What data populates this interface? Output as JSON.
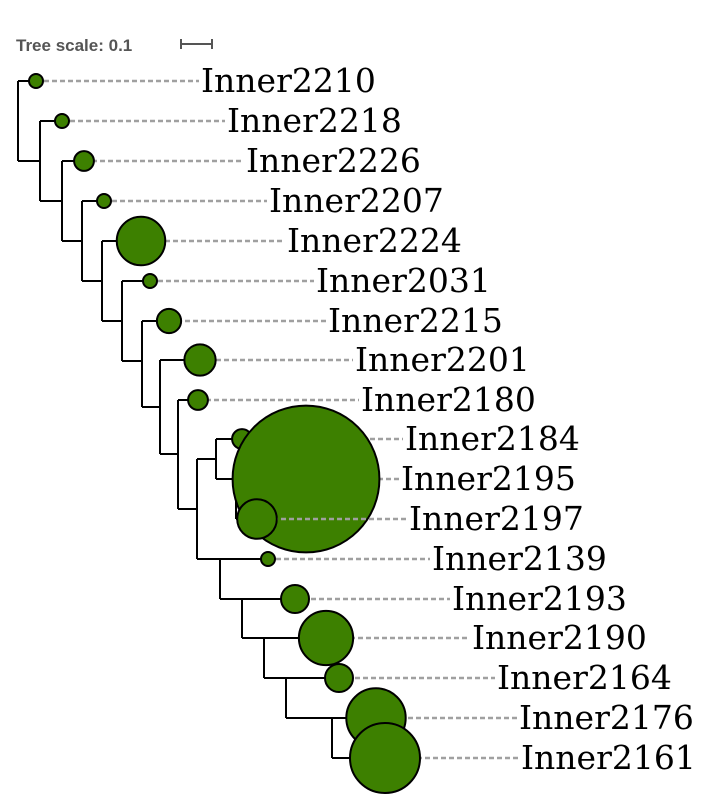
{
  "tree_scale": {
    "label": "Tree scale: 0.1",
    "color": "#555555"
  },
  "colors": {
    "node_fill": "#3d8000",
    "guide": "#a0a0a0",
    "branch": "#000000"
  },
  "leaves": [
    {
      "label": "Inner2210",
      "size": 1
    },
    {
      "label": "Inner2218",
      "size": 1
    },
    {
      "label": "Inner2226",
      "size": 2
    },
    {
      "label": "Inner2207",
      "size": 1
    },
    {
      "label": "Inner2224",
      "size": 12
    },
    {
      "label": "Inner2031",
      "size": 1
    },
    {
      "label": "Inner2215",
      "size": 3
    },
    {
      "label": "Inner2201",
      "size": 5
    },
    {
      "label": "Inner2180",
      "size": 2
    },
    {
      "label": "Inner2184",
      "size": 2
    },
    {
      "label": "Inner2195",
      "size": 110
    },
    {
      "label": "Inner2197",
      "size": 8
    },
    {
      "label": "Inner2139",
      "size": 1
    },
    {
      "label": "Inner2193",
      "size": 4
    },
    {
      "label": "Inner2190",
      "size": 15
    },
    {
      "label": "Inner2164",
      "size": 4
    },
    {
      "label": "Inner2176",
      "size": 18
    },
    {
      "label": "Inner2161",
      "size": 25
    }
  ]
}
